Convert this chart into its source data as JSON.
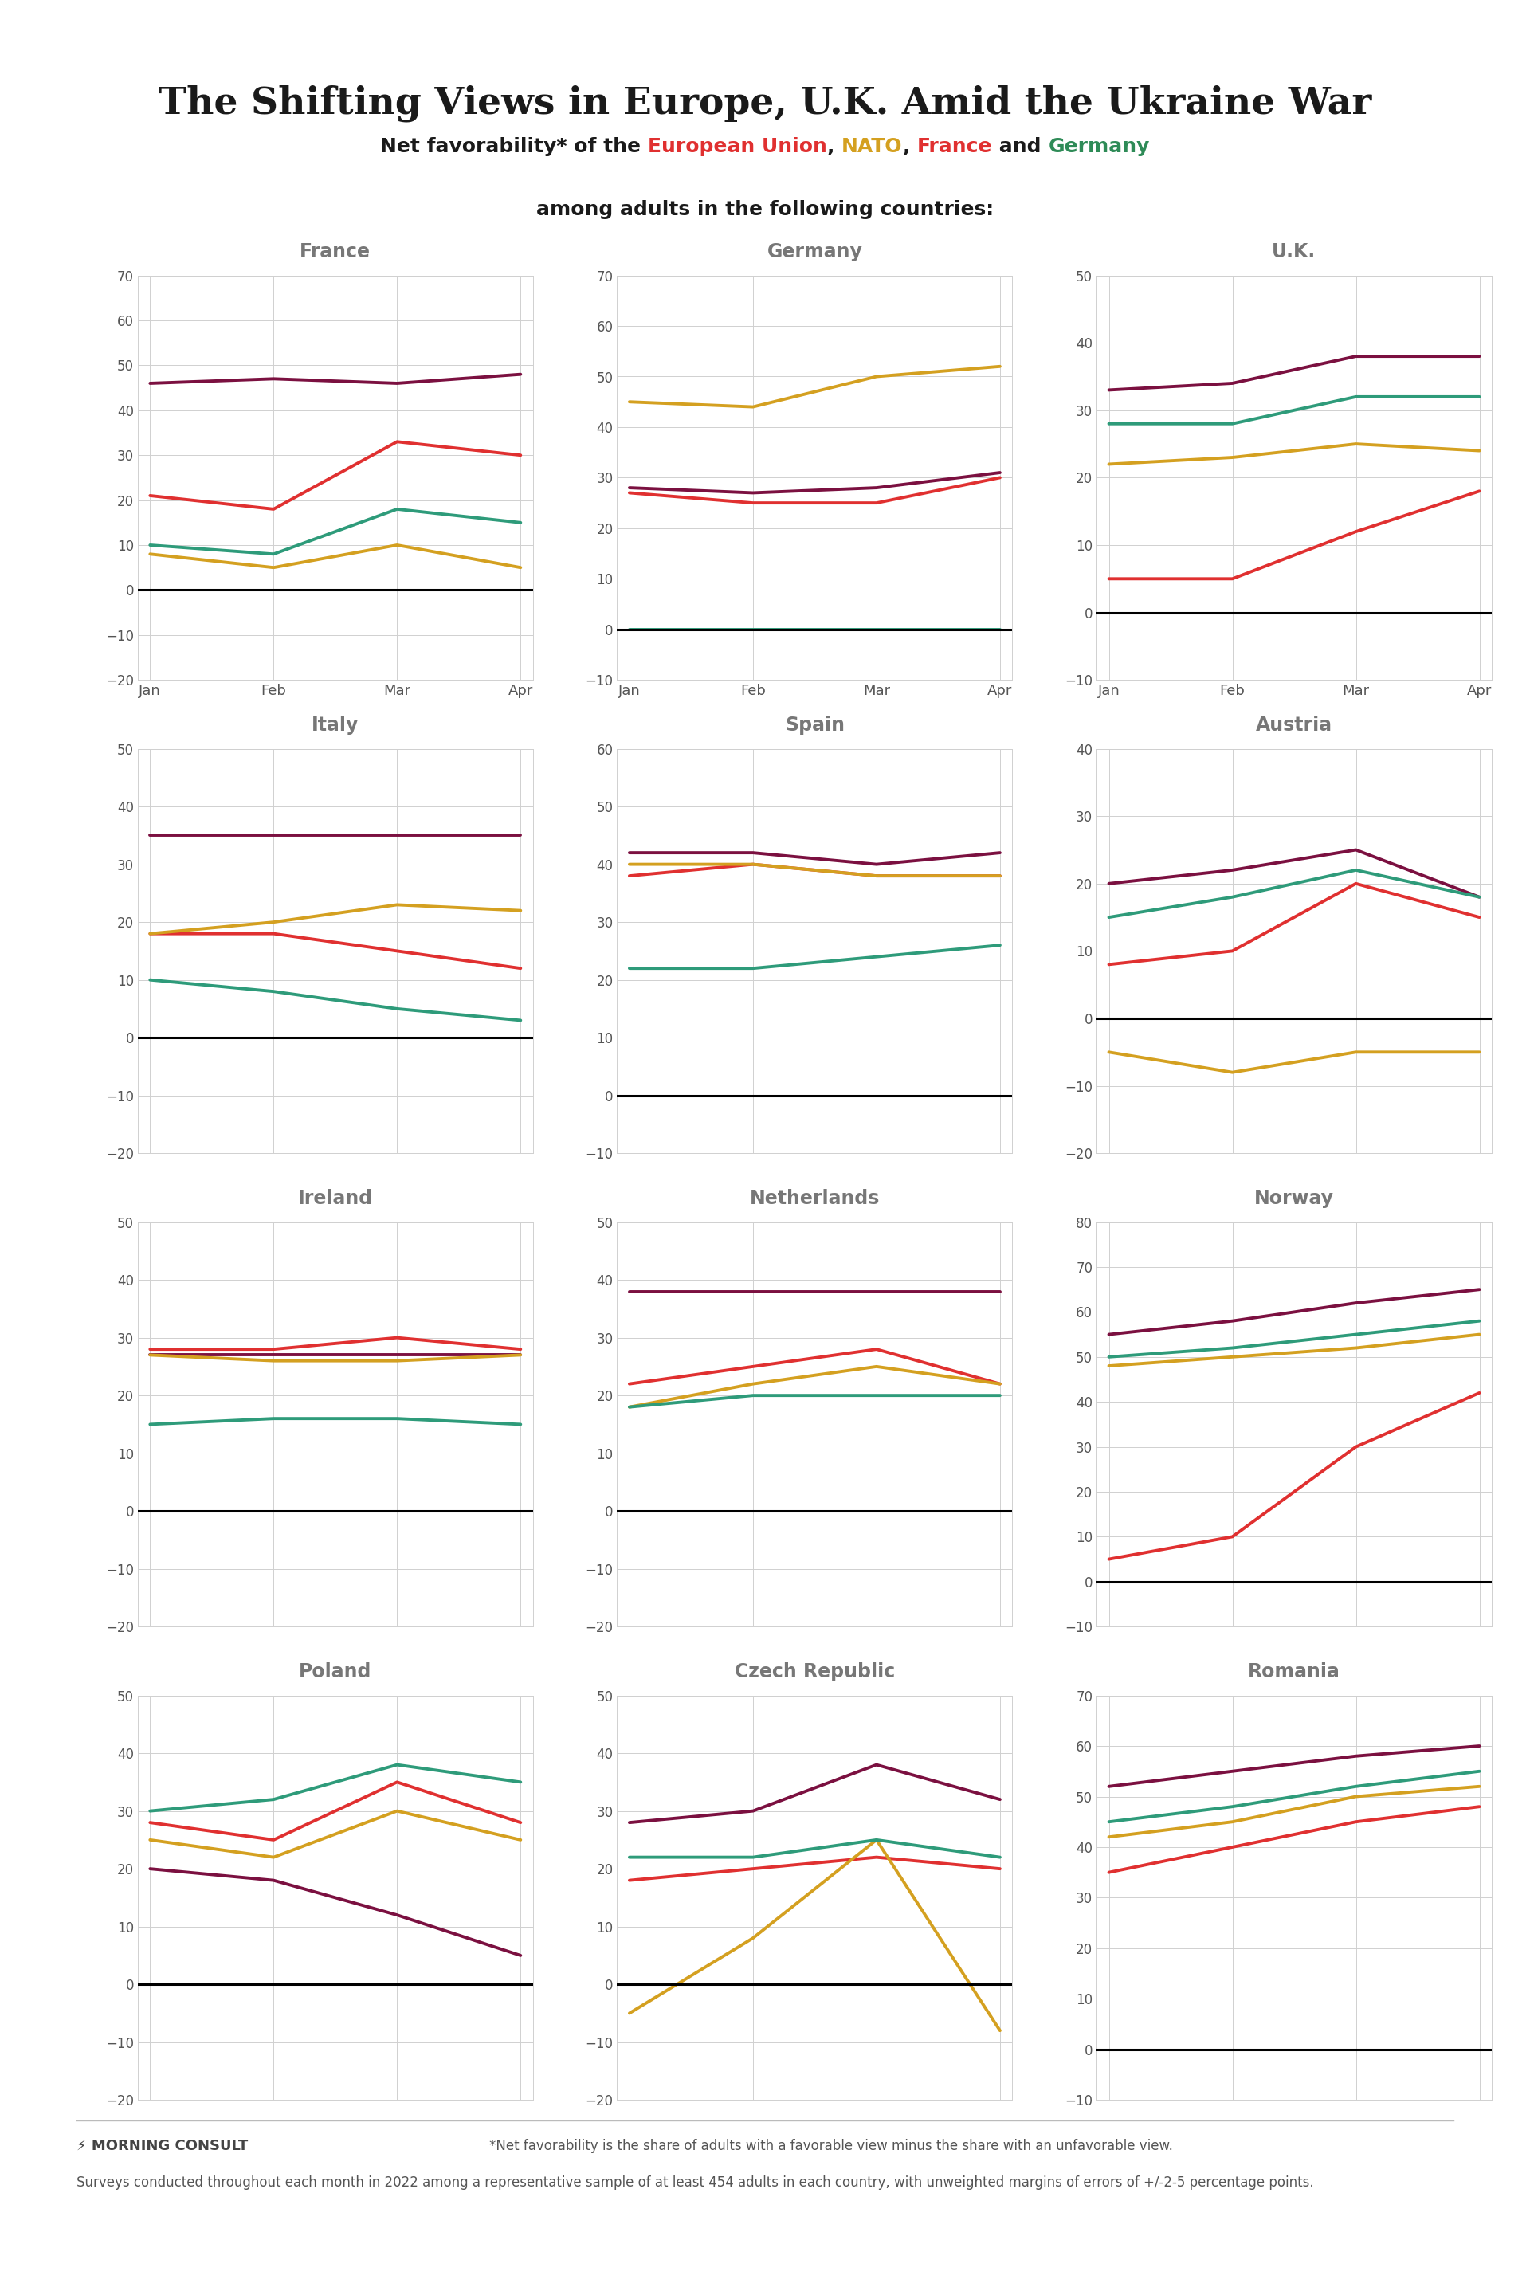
{
  "title": "The Shifting Views in Europe, U.K. Amid the Ukraine War",
  "line1_parts": [
    {
      "text": "Net favorability* of the ",
      "color": "#1a1a1a",
      "bold": true
    },
    {
      "text": "European Union",
      "color": "#E03030",
      "bold": true
    },
    {
      "text": ", ",
      "color": "#1a1a1a",
      "bold": true
    },
    {
      "text": "NATO",
      "color": "#D4A020",
      "bold": true
    },
    {
      "text": ", ",
      "color": "#1a1a1a",
      "bold": true
    },
    {
      "text": "France",
      "color": "#E03030",
      "bold": true
    },
    {
      "text": " and ",
      "color": "#1a1a1a",
      "bold": true
    },
    {
      "text": "Germany",
      "color": "#2E8B57",
      "bold": true
    }
  ],
  "line2": "among adults in the following countries:",
  "x_labels": [
    "Jan",
    "Feb",
    "Mar",
    "Apr"
  ],
  "countries": [
    "France",
    "Germany",
    "U.K.",
    "Italy",
    "Spain",
    "Austria",
    "Ireland",
    "Netherlands",
    "Norway",
    "Poland",
    "Czech Republic",
    "Romania"
  ],
  "colors": {
    "EU": "#E03030",
    "NATO": "#D4A020",
    "France_line": "#7B1040",
    "Germany_line": "#2E9B7A"
  },
  "chart_data": {
    "France": {
      "France_line": [
        46,
        47,
        46,
        48
      ],
      "EU": [
        21,
        18,
        33,
        30
      ],
      "Germany_line": [
        10,
        8,
        18,
        15
      ],
      "NATO": [
        8,
        5,
        10,
        5
      ]
    },
    "Germany": {
      "NATO": [
        45,
        44,
        50,
        52
      ],
      "France_line": [
        28,
        27,
        28,
        31
      ],
      "EU": [
        27,
        25,
        25,
        30
      ],
      "Germany_line": [
        0,
        0,
        0,
        0
      ]
    },
    "U.K.": {
      "France_line": [
        33,
        34,
        38,
        38
      ],
      "Germany_line": [
        28,
        28,
        32,
        32
      ],
      "NATO": [
        22,
        23,
        25,
        24
      ],
      "EU": [
        5,
        5,
        12,
        18
      ]
    },
    "Italy": {
      "France_line": [
        35,
        35,
        35,
        35
      ],
      "NATO": [
        18,
        20,
        23,
        22
      ],
      "EU": [
        18,
        18,
        15,
        12
      ],
      "Germany_line": [
        10,
        8,
        5,
        3
      ]
    },
    "Spain": {
      "France_line": [
        42,
        42,
        40,
        42
      ],
      "NATO": [
        40,
        40,
        38,
        38
      ],
      "EU": [
        38,
        40,
        38,
        38
      ],
      "Germany_line": [
        22,
        22,
        24,
        26
      ]
    },
    "Austria": {
      "France_line": [
        20,
        22,
        25,
        18
      ],
      "Germany_line": [
        15,
        18,
        22,
        18
      ],
      "EU": [
        8,
        10,
        20,
        15
      ],
      "NATO": [
        -5,
        -8,
        -5,
        -5
      ]
    },
    "Ireland": {
      "EU": [
        28,
        28,
        30,
        28
      ],
      "France_line": [
        27,
        27,
        27,
        27
      ],
      "NATO": [
        27,
        26,
        26,
        27
      ],
      "Germany_line": [
        15,
        16,
        16,
        15
      ]
    },
    "Netherlands": {
      "France_line": [
        38,
        38,
        38,
        38
      ],
      "EU": [
        22,
        25,
        28,
        22
      ],
      "NATO": [
        18,
        22,
        25,
        22
      ],
      "Germany_line": [
        18,
        20,
        20,
        20
      ]
    },
    "Norway": {
      "France_line": [
        55,
        58,
        62,
        65
      ],
      "Germany_line": [
        50,
        52,
        55,
        58
      ],
      "NATO": [
        48,
        50,
        52,
        55
      ],
      "EU": [
        5,
        10,
        30,
        42
      ]
    },
    "Poland": {
      "Germany_line": [
        30,
        32,
        38,
        35
      ],
      "EU": [
        28,
        25,
        35,
        28
      ],
      "NATO": [
        25,
        22,
        30,
        25
      ],
      "France_line": [
        20,
        18,
        12,
        5
      ]
    },
    "Czech Republic": {
      "France_line": [
        28,
        30,
        38,
        32
      ],
      "Germany_line": [
        22,
        22,
        25,
        22
      ],
      "EU": [
        18,
        20,
        22,
        20
      ],
      "NATO": [
        -5,
        8,
        25,
        -8
      ]
    },
    "Romania": {
      "France_line": [
        52,
        55,
        58,
        60
      ],
      "Germany_line": [
        45,
        48,
        52,
        55
      ],
      "NATO": [
        42,
        45,
        50,
        52
      ],
      "EU": [
        35,
        40,
        45,
        48
      ]
    }
  },
  "ylims": {
    "France": [
      -20,
      70
    ],
    "Germany": [
      -10,
      70
    ],
    "U.K.": [
      -10,
      50
    ],
    "Italy": [
      -20,
      50
    ],
    "Spain": [
      -10,
      60
    ],
    "Austria": [
      -20,
      40
    ],
    "Ireland": [
      -20,
      50
    ],
    "Netherlands": [
      -20,
      50
    ],
    "Norway": [
      -10,
      80
    ],
    "Poland": [
      -20,
      50
    ],
    "Czech Republic": [
      -20,
      50
    ],
    "Romania": [
      -10,
      70
    ]
  },
  "top_bar_color": "#3ECFCF",
  "footnote1": "*Net favorability is the share of adults with a favorable view minus the share with an unfavorable view.",
  "footnote2": "Surveys conducted throughout each month in 2022 among a representative sample of at least 454 adults in each country, with unweighted margins of errors of +/-2-5 percentage points.",
  "logo_text": "MORNING CONSULT"
}
